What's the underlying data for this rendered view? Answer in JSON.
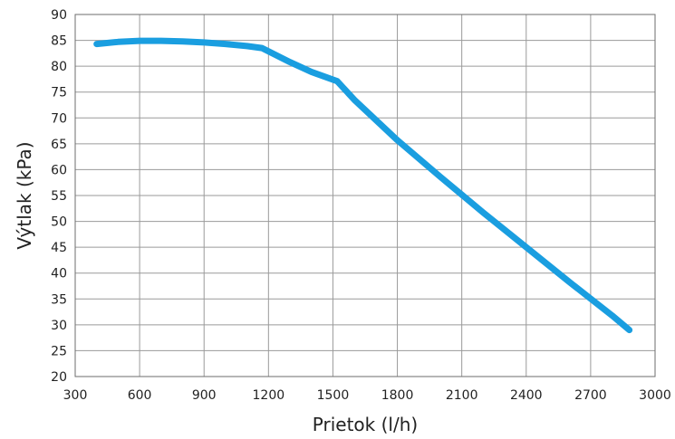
{
  "chart_data": {
    "type": "line",
    "title": "",
    "xlabel": "Prietok (l/h)",
    "ylabel": "Výtlak (kPa)",
    "xlim": [
      300,
      3000
    ],
    "ylim": [
      20,
      90
    ],
    "xticks": [
      300,
      600,
      900,
      1200,
      1500,
      1800,
      2100,
      2400,
      2700,
      3000
    ],
    "yticks": [
      20,
      25,
      30,
      35,
      40,
      45,
      50,
      55,
      60,
      65,
      70,
      75,
      80,
      85,
      90
    ],
    "grid": true,
    "legend": "none",
    "series": [
      {
        "color": "#1a9ee0",
        "x": [
          400,
          500,
          600,
          700,
          800,
          900,
          1000,
          1100,
          1170,
          1300,
          1400,
          1520,
          1600,
          1800,
          2000,
          2200,
          2400,
          2600,
          2800,
          2880
        ],
        "y": [
          84.3,
          84.7,
          84.9,
          84.9,
          84.8,
          84.6,
          84.3,
          83.9,
          83.5,
          80.8,
          78.9,
          77.1,
          73.5,
          65.7,
          58.6,
          51.7,
          45.0,
          38.3,
          31.8,
          29.0
        ]
      }
    ]
  }
}
